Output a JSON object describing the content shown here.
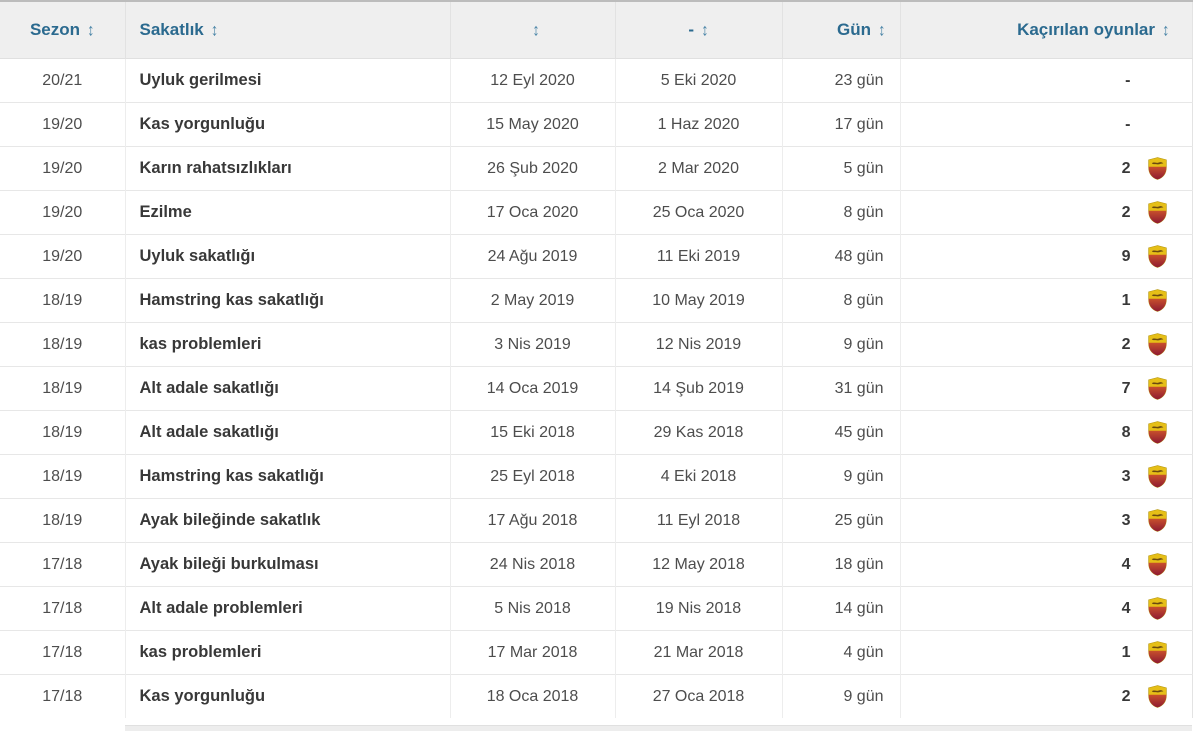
{
  "table": {
    "sort_icon": "↕",
    "columns": [
      {
        "label": "Sezon"
      },
      {
        "label": "Sakatlık"
      },
      {
        "label": ""
      },
      {
        "label": "-"
      },
      {
        "label": "Gün"
      },
      {
        "label": "Kaçırılan oyunlar"
      }
    ],
    "club_icon": "as-roma-crest",
    "rows": [
      {
        "season": "20/21",
        "injury": "Uyluk gerilmesi",
        "from": "12 Eyl 2020",
        "until": "5 Eki 2020",
        "days": "23 gün",
        "missed": "-",
        "has_badge": false
      },
      {
        "season": "19/20",
        "injury": "Kas yorgunluğu",
        "from": "15 May 2020",
        "until": "1 Haz 2020",
        "days": "17 gün",
        "missed": "-",
        "has_badge": false
      },
      {
        "season": "19/20",
        "injury": "Karın rahatsızlıkları",
        "from": "26 Şub 2020",
        "until": "2 Mar 2020",
        "days": "5 gün",
        "missed": "2",
        "has_badge": true
      },
      {
        "season": "19/20",
        "injury": "Ezilme",
        "from": "17 Oca 2020",
        "until": "25 Oca 2020",
        "days": "8 gün",
        "missed": "2",
        "has_badge": true
      },
      {
        "season": "19/20",
        "injury": "Uyluk sakatlığı",
        "from": "24 Ağu 2019",
        "until": "11 Eki 2019",
        "days": "48 gün",
        "missed": "9",
        "has_badge": true
      },
      {
        "season": "18/19",
        "injury": "Hamstring kas sakatlığı",
        "from": "2 May 2019",
        "until": "10 May 2019",
        "days": "8 gün",
        "missed": "1",
        "has_badge": true
      },
      {
        "season": "18/19",
        "injury": "kas problemleri",
        "from": "3 Nis 2019",
        "until": "12 Nis 2019",
        "days": "9 gün",
        "missed": "2",
        "has_badge": true
      },
      {
        "season": "18/19",
        "injury": "Alt adale sakatlığı",
        "from": "14 Oca 2019",
        "until": "14 Şub 2019",
        "days": "31 gün",
        "missed": "7",
        "has_badge": true
      },
      {
        "season": "18/19",
        "injury": "Alt adale sakatlığı",
        "from": "15 Eki 2018",
        "until": "29 Kas 2018",
        "days": "45 gün",
        "missed": "8",
        "has_badge": true
      },
      {
        "season": "18/19",
        "injury": "Hamstring kas sakatlığı",
        "from": "25 Eyl 2018",
        "until": "4 Eki 2018",
        "days": "9 gün",
        "missed": "3",
        "has_badge": true
      },
      {
        "season": "18/19",
        "injury": "Ayak bileğinde sakatlık",
        "from": "17 Ağu 2018",
        "until": "11 Eyl 2018",
        "days": "25 gün",
        "missed": "3",
        "has_badge": true
      },
      {
        "season": "17/18",
        "injury": "Ayak bileği burkulması",
        "from": "24 Nis 2018",
        "until": "12 May 2018",
        "days": "18 gün",
        "missed": "4",
        "has_badge": true
      },
      {
        "season": "17/18",
        "injury": "Alt adale problemleri",
        "from": "5 Nis 2018",
        "until": "19 Nis 2018",
        "days": "14 gün",
        "missed": "4",
        "has_badge": true
      },
      {
        "season": "17/18",
        "injury": "kas problemleri",
        "from": "17 Mar 2018",
        "until": "21 Mar 2018",
        "days": "4 gün",
        "missed": "1",
        "has_badge": true
      },
      {
        "season": "17/18",
        "injury": "Kas yorgunluğu",
        "from": "18 Oca 2018",
        "until": "27 Oca 2018",
        "days": "9 gün",
        "missed": "2",
        "has_badge": true
      }
    ]
  },
  "colors": {
    "header_bg": "#efefef",
    "header_text": "#2b6a8f",
    "row_border": "#e7e7e7",
    "body_text": "#4d4d4d",
    "crest_gold": "#e6bf17",
    "crest_red_top": "#c8502c",
    "crest_red_bottom": "#8e1a32"
  }
}
